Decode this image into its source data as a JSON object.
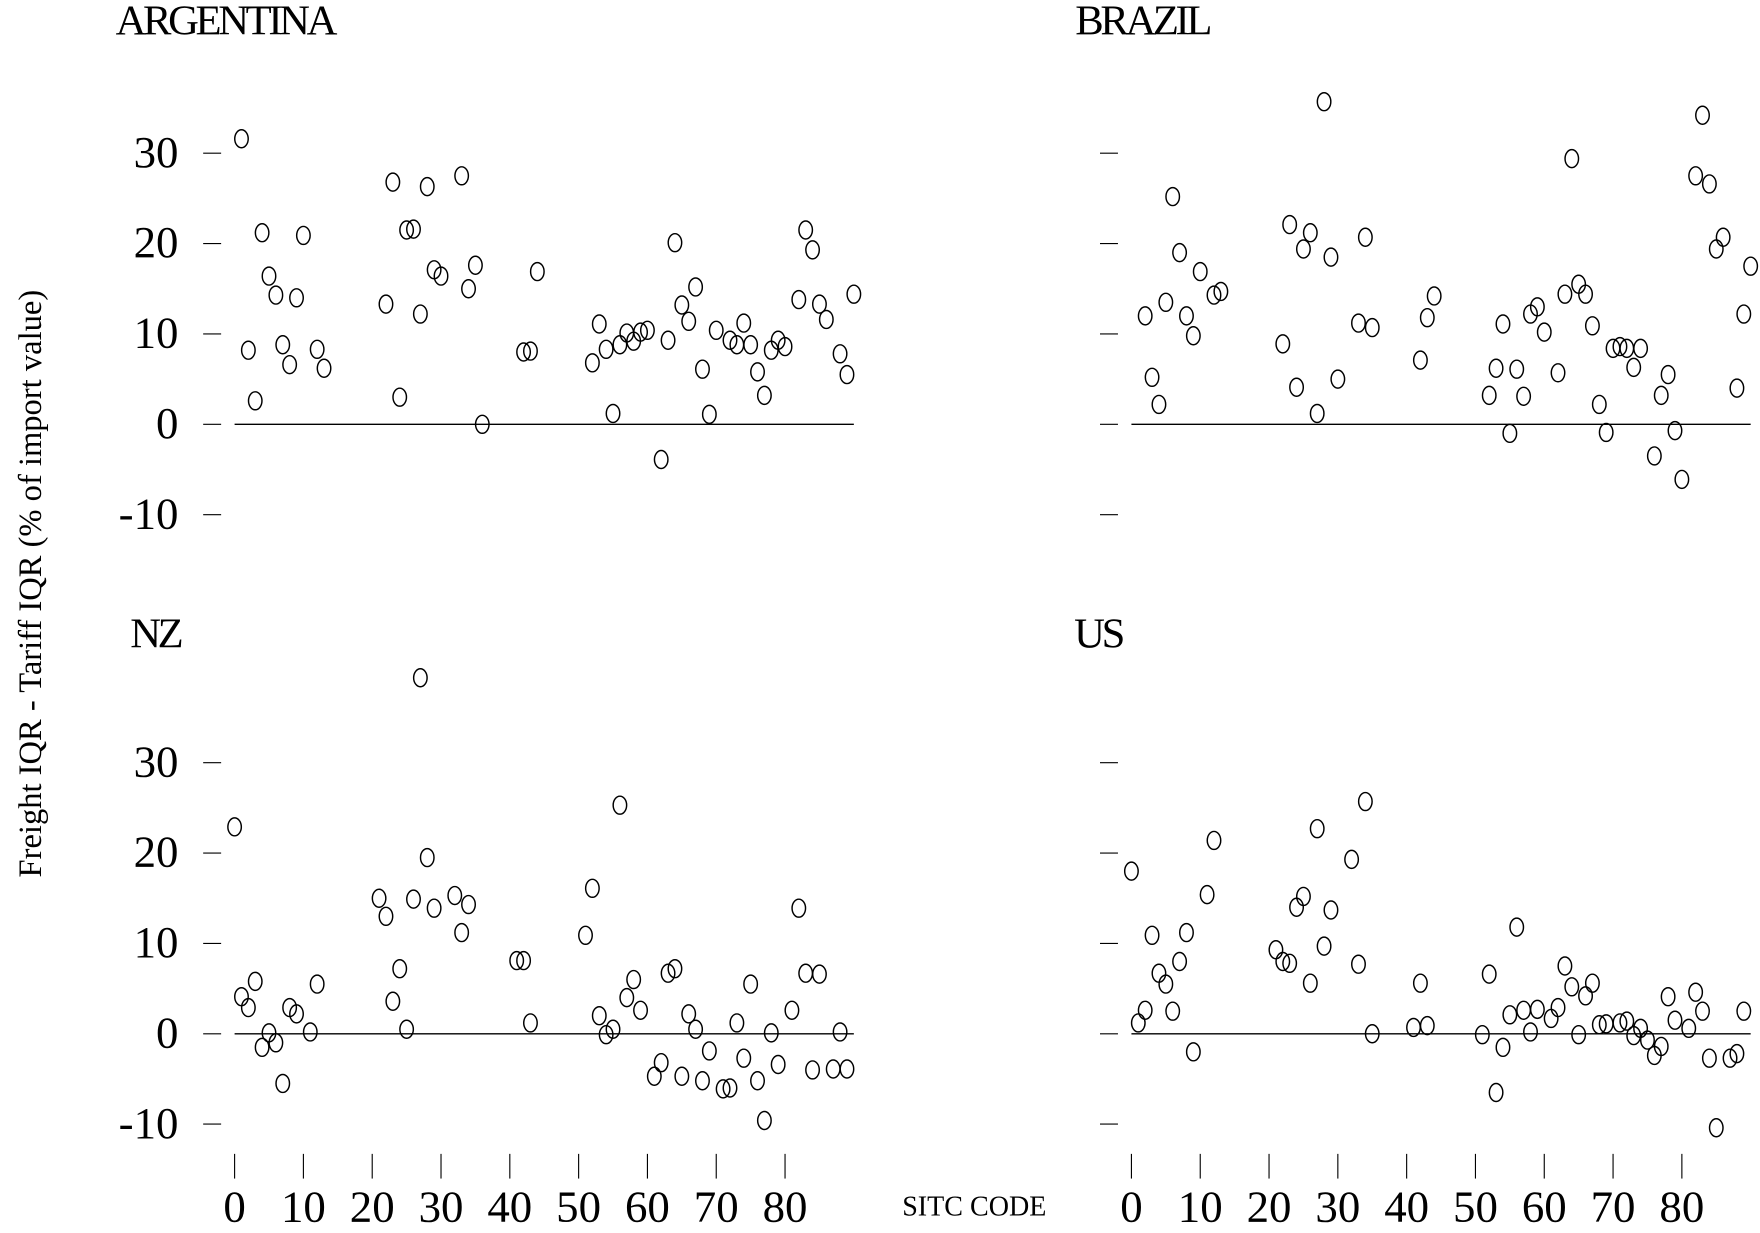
{
  "y_label": "Freight IQR - Tariff IQR (% of import value)",
  "x_label": "SITC CODE",
  "chart_data": [
    {
      "type": "scatter",
      "title": "ARGENTINA",
      "color": "#000000",
      "hline": 0,
      "xlim": [
        0,
        90
      ],
      "ylim": [
        -12,
        40
      ],
      "yticks": [
        -10,
        0,
        10,
        20,
        30
      ],
      "ytick_labels": true,
      "x": [
        1,
        2,
        3,
        4,
        5,
        6,
        7,
        8,
        9,
        10,
        12,
        13,
        22,
        23,
        24,
        25,
        26,
        27,
        28,
        29,
        30,
        33,
        34,
        35,
        36,
        42,
        43,
        44,
        52,
        53,
        54,
        55,
        56,
        57,
        58,
        59,
        60,
        62,
        63,
        64,
        65,
        66,
        67,
        68,
        69,
        70,
        72,
        73,
        74,
        75,
        76,
        77,
        78,
        79,
        80,
        82,
        83,
        84,
        85,
        86,
        88,
        89,
        90
      ],
      "values": [
        31.6,
        8.2,
        2.6,
        21.2,
        16.4,
        14.3,
        8.8,
        6.6,
        14,
        20.9,
        8.3,
        6.2,
        13.3,
        26.8,
        3,
        21.5,
        21.6,
        12.2,
        26.3,
        17.1,
        16.4,
        27.5,
        15,
        17.6,
        0,
        8,
        8.1,
        16.9,
        6.8,
        11.1,
        8.3,
        1.2,
        8.8,
        10.1,
        9.2,
        10.2,
        10.4,
        -3.9,
        9.3,
        20.1,
        13.2,
        11.4,
        15.2,
        6.1,
        1.1,
        10.4,
        9.3,
        8.8,
        11.2,
        8.8,
        5.8,
        3.2,
        8.2,
        9.3,
        8.6,
        13.8,
        21.5,
        19.3,
        13.3,
        11.6,
        7.8,
        5.5,
        14.4
      ]
    },
    {
      "type": "scatter",
      "title": "BRAZIL",
      "color": "#000000",
      "hline": 0,
      "xlim": [
        0,
        90
      ],
      "ylim": [
        -12,
        40
      ],
      "yticks": [
        -10,
        0,
        10,
        20,
        30
      ],
      "ytick_labels": false,
      "x": [
        2,
        3,
        4,
        5,
        6,
        7,
        8,
        9,
        10,
        12,
        13,
        22,
        23,
        24,
        25,
        26,
        27,
        28,
        29,
        30,
        33,
        34,
        35,
        42,
        43,
        44,
        52,
        53,
        54,
        55,
        56,
        57,
        58,
        59,
        60,
        62,
        63,
        64,
        65,
        66,
        67,
        68,
        69,
        70,
        71,
        72,
        73,
        74,
        76,
        77,
        78,
        79,
        80,
        82,
        83,
        84,
        85,
        86,
        88,
        89,
        90
      ],
      "values": [
        12,
        5.2,
        2.2,
        13.5,
        25.2,
        19,
        12,
        9.8,
        16.9,
        14.3,
        14.7,
        8.9,
        22.1,
        4.1,
        19.4,
        21.2,
        1.2,
        35.7,
        18.5,
        5,
        11.2,
        20.7,
        10.7,
        7.1,
        11.8,
        14.2,
        3.2,
        6.2,
        11.1,
        -1,
        6.1,
        3.1,
        12.2,
        13,
        10.2,
        5.7,
        14.4,
        29.4,
        15.5,
        14.4,
        10.9,
        2.2,
        -0.9,
        8.4,
        8.6,
        8.4,
        6.3,
        8.4,
        -3.5,
        3.2,
        5.5,
        -0.7,
        -6.1,
        27.5,
        34.2,
        26.6,
        19.4,
        20.7,
        4,
        12.2,
        17.5
      ]
    },
    {
      "type": "scatter",
      "title": "NZ",
      "color": "#000000",
      "hline": 0,
      "xlim": [
        0,
        90
      ],
      "ylim": [
        -12,
        40
      ],
      "yticks": [
        -10,
        0,
        10,
        20,
        30
      ],
      "ytick_labels": true,
      "xticks": [
        0,
        10,
        20,
        30,
        40,
        50,
        60,
        70,
        80
      ],
      "x": [
        0,
        1,
        2,
        3,
        4,
        5,
        6,
        7,
        8,
        9,
        11,
        12,
        21,
        22,
        23,
        24,
        25,
        26,
        27,
        28,
        29,
        32,
        33,
        34,
        41,
        42,
        43,
        51,
        52,
        53,
        54,
        55,
        56,
        57,
        58,
        59,
        61,
        62,
        63,
        64,
        65,
        66,
        67,
        68,
        69,
        71,
        72,
        73,
        74,
        75,
        76,
        77,
        78,
        79,
        81,
        82,
        83,
        84,
        85,
        87,
        88,
        89
      ],
      "values": [
        22.9,
        4.1,
        2.9,
        5.8,
        -1.5,
        0.1,
        -1,
        -5.5,
        2.9,
        2.2,
        0.2,
        5.5,
        15,
        13,
        3.6,
        7.2,
        0.5,
        14.9,
        39.4,
        19.5,
        13.9,
        15.3,
        11.2,
        14.3,
        8.1,
        8.1,
        1.2,
        10.9,
        16.1,
        2,
        -0.1,
        0.5,
        25.3,
        4,
        6,
        2.6,
        -4.7,
        -3.2,
        6.7,
        7.2,
        -4.7,
        2.2,
        0.5,
        -5.2,
        -1.9,
        -6.1,
        -6,
        1.2,
        -2.7,
        5.5,
        -5.2,
        -9.6,
        0.1,
        -3.4,
        2.6,
        13.9,
        6.7,
        -4,
        6.6,
        -3.9,
        0.2,
        -3.9
      ]
    },
    {
      "type": "scatter",
      "title": "US",
      "color": "#000000",
      "hline": 0,
      "xlim": [
        0,
        90
      ],
      "ylim": [
        -12,
        40
      ],
      "yticks": [
        -10,
        0,
        10,
        20,
        30
      ],
      "ytick_labels": false,
      "xticks": [
        0,
        10,
        20,
        30,
        40,
        50,
        60,
        70,
        80
      ],
      "x": [
        0,
        1,
        2,
        3,
        4,
        5,
        6,
        7,
        8,
        9,
        11,
        12,
        21,
        22,
        23,
        24,
        25,
        26,
        27,
        28,
        29,
        32,
        33,
        34,
        35,
        41,
        42,
        43,
        51,
        52,
        53,
        54,
        55,
        56,
        57,
        58,
        59,
        61,
        62,
        63,
        64,
        65,
        66,
        67,
        68,
        69,
        71,
        72,
        73,
        74,
        75,
        76,
        77,
        78,
        79,
        81,
        82,
        83,
        84,
        85,
        87,
        88,
        89
      ],
      "values": [
        18,
        1.2,
        2.6,
        10.9,
        6.7,
        5.5,
        2.5,
        8,
        11.2,
        -2,
        15.4,
        21.4,
        9.3,
        8,
        7.8,
        14,
        15.2,
        5.6,
        22.7,
        9.7,
        13.7,
        19.3,
        7.7,
        25.7,
        0,
        0.7,
        5.6,
        0.9,
        -0.1,
        6.6,
        -6.5,
        -1.5,
        2.1,
        11.8,
        2.6,
        0.2,
        2.7,
        1.7,
        2.9,
        7.5,
        5.2,
        -0.1,
        4.2,
        5.6,
        1,
        1.1,
        1.2,
        1.4,
        -0.2,
        0.6,
        -0.7,
        -2.4,
        -1.4,
        4.1,
        1.5,
        0.6,
        4.6,
        2.5,
        -2.7,
        -10.4,
        -2.7,
        -2.2,
        2.5
      ]
    }
  ]
}
